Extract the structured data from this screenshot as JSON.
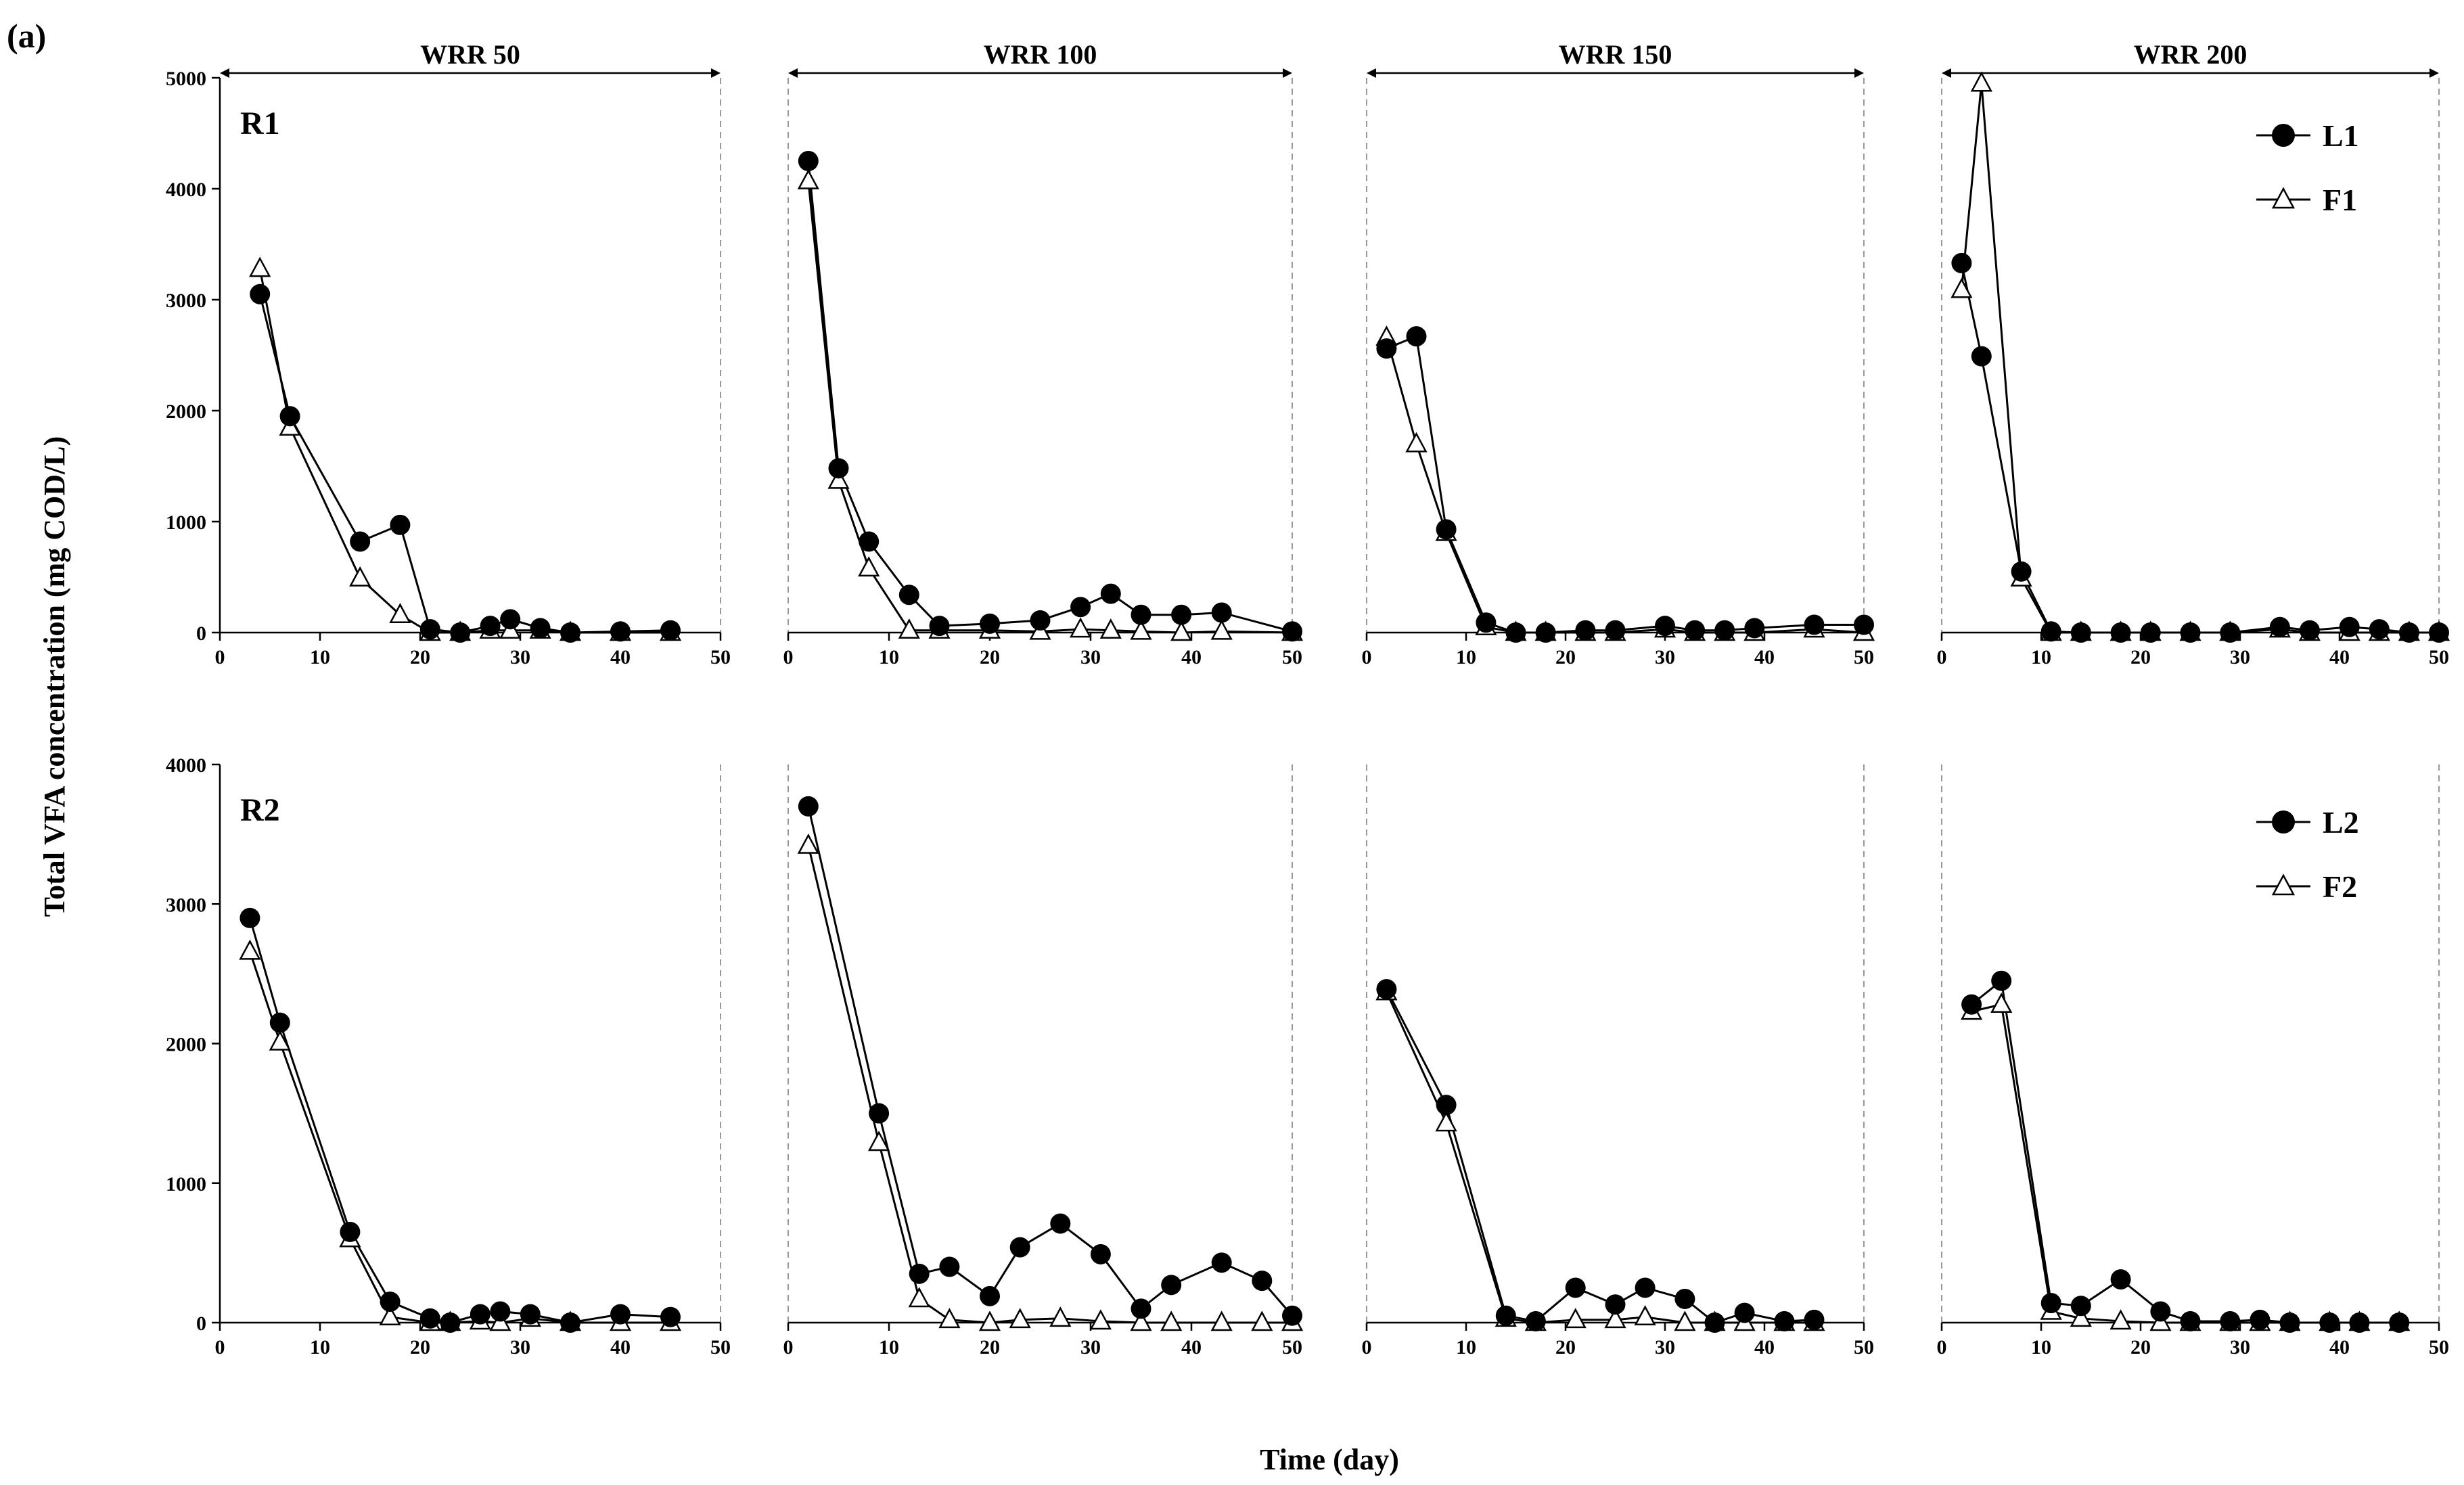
{
  "chart_data": {
    "type": "line",
    "panel_label": "(a)",
    "ylabel": "Total VFA concentration (mg COD/L)",
    "xlabel": "Time (day)",
    "xlim": [
      0,
      50
    ],
    "x_ticks": [
      "0",
      "10",
      "20",
      "30",
      "40",
      "50"
    ],
    "periods": [
      "WRR 50",
      "WRR 100",
      "WRR 150",
      "WRR 200"
    ],
    "rows": [
      {
        "label": "R1",
        "ylim": [
          0,
          5000
        ],
        "y_ticks": [
          "0",
          "1000",
          "2000",
          "3000",
          "4000",
          "5000"
        ],
        "legend": {
          "filled": "L1",
          "open": "F1"
        },
        "panels": [
          {
            "L": [
              [
                4,
                3050
              ],
              [
                7,
                1950
              ],
              [
                14,
                820
              ],
              [
                18,
                970
              ],
              [
                21,
                30
              ],
              [
                24,
                0
              ],
              [
                27,
                60
              ],
              [
                29,
                120
              ],
              [
                32,
                40
              ],
              [
                35,
                0
              ],
              [
                40,
                10
              ],
              [
                45,
                20
              ]
            ],
            "F": [
              [
                4,
                3280
              ],
              [
                7,
                1850
              ],
              [
                14,
                490
              ],
              [
                18,
                160
              ],
              [
                21,
                0
              ],
              [
                24,
                0
              ],
              [
                27,
                20
              ],
              [
                29,
                20
              ],
              [
                32,
                20
              ],
              [
                35,
                0
              ],
              [
                40,
                0
              ],
              [
                45,
                0
              ]
            ]
          },
          {
            "L": [
              [
                2,
                4250
              ],
              [
                5,
                1480
              ],
              [
                8,
                820
              ],
              [
                12,
                340
              ],
              [
                15,
                60
              ],
              [
                20,
                80
              ],
              [
                25,
                110
              ],
              [
                29,
                230
              ],
              [
                32,
                350
              ],
              [
                35,
                160
              ],
              [
                39,
                160
              ],
              [
                43,
                180
              ],
              [
                50,
                10
              ]
            ],
            "F": [
              [
                2,
                4070
              ],
              [
                5,
                1370
              ],
              [
                8,
                580
              ],
              [
                12,
                20
              ],
              [
                15,
                20
              ],
              [
                20,
                20
              ],
              [
                25,
                10
              ],
              [
                29,
                30
              ],
              [
                32,
                20
              ],
              [
                35,
                10
              ],
              [
                39,
                0
              ],
              [
                43,
                10
              ],
              [
                50,
                0
              ]
            ]
          },
          {
            "L": [
              [
                2,
                2560
              ],
              [
                5,
                2670
              ],
              [
                8,
                930
              ],
              [
                12,
                90
              ],
              [
                15,
                0
              ],
              [
                18,
                0
              ],
              [
                22,
                20
              ],
              [
                25,
                20
              ],
              [
                30,
                60
              ],
              [
                33,
                20
              ],
              [
                36,
                20
              ],
              [
                39,
                40
              ],
              [
                45,
                70
              ],
              [
                50,
                70
              ]
            ],
            "F": [
              [
                2,
                2660
              ],
              [
                5,
                1700
              ],
              [
                8,
                900
              ],
              [
                12,
                50
              ],
              [
                15,
                0
              ],
              [
                18,
                0
              ],
              [
                22,
                0
              ],
              [
                25,
                0
              ],
              [
                30,
                30
              ],
              [
                33,
                0
              ],
              [
                36,
                0
              ],
              [
                39,
                0
              ],
              [
                45,
                30
              ],
              [
                50,
                0
              ]
            ]
          },
          {
            "L": [
              [
                2,
                3330
              ],
              [
                4,
                2490
              ],
              [
                8,
                550
              ],
              [
                11,
                10
              ],
              [
                14,
                0
              ],
              [
                18,
                0
              ],
              [
                21,
                0
              ],
              [
                25,
                0
              ],
              [
                29,
                0
              ],
              [
                34,
                50
              ],
              [
                37,
                20
              ],
              [
                41,
                50
              ],
              [
                44,
                30
              ],
              [
                47,
                0
              ],
              [
                50,
                0
              ]
            ],
            "F": [
              [
                2,
                3090
              ],
              [
                4,
                4950
              ],
              [
                8,
                490
              ],
              [
                11,
                0
              ],
              [
                14,
                0
              ],
              [
                18,
                0
              ],
              [
                21,
                0
              ],
              [
                25,
                0
              ],
              [
                29,
                0
              ],
              [
                34,
                30
              ],
              [
                37,
                0
              ],
              [
                41,
                0
              ],
              [
                44,
                0
              ],
              [
                47,
                0
              ],
              [
                50,
                0
              ]
            ]
          }
        ]
      },
      {
        "label": "R2",
        "ylim": [
          0,
          4000
        ],
        "y_ticks": [
          "0",
          "1000",
          "2000",
          "3000",
          "4000"
        ],
        "legend": {
          "filled": "L2",
          "open": "F2"
        },
        "panels": [
          {
            "L": [
              [
                3,
                2900
              ],
              [
                6,
                2150
              ],
              [
                13,
                650
              ],
              [
                17,
                150
              ],
              [
                21,
                30
              ],
              [
                23,
                0
              ],
              [
                26,
                60
              ],
              [
                28,
                80
              ],
              [
                31,
                60
              ],
              [
                35,
                0
              ],
              [
                40,
                60
              ],
              [
                45,
                40
              ]
            ],
            "F": [
              [
                3,
                2660
              ],
              [
                6,
                2010
              ],
              [
                13,
                600
              ],
              [
                17,
                40
              ],
              [
                21,
                0
              ],
              [
                23,
                0
              ],
              [
                26,
                10
              ],
              [
                28,
                0
              ],
              [
                31,
                30
              ],
              [
                35,
                0
              ],
              [
                40,
                0
              ],
              [
                45,
                0
              ]
            ]
          },
          {
            "L": [
              [
                2,
                3700
              ],
              [
                9,
                1500
              ],
              [
                13,
                350
              ],
              [
                16,
                400
              ],
              [
                20,
                190
              ],
              [
                23,
                540
              ],
              [
                27,
                710
              ],
              [
                31,
                490
              ],
              [
                35,
                100
              ],
              [
                38,
                270
              ],
              [
                43,
                430
              ],
              [
                47,
                300
              ],
              [
                50,
                50
              ]
            ],
            "F": [
              [
                2,
                3420
              ],
              [
                9,
                1290
              ],
              [
                13,
                170
              ],
              [
                16,
                20
              ],
              [
                20,
                0
              ],
              [
                23,
                20
              ],
              [
                27,
                30
              ],
              [
                31,
                10
              ],
              [
                35,
                0
              ],
              [
                38,
                0
              ],
              [
                43,
                0
              ],
              [
                47,
                0
              ],
              [
                50,
                0
              ]
            ]
          },
          {
            "L": [
              [
                2,
                2390
              ],
              [
                8,
                1560
              ],
              [
                14,
                50
              ],
              [
                17,
                10
              ],
              [
                21,
                250
              ],
              [
                25,
                130
              ],
              [
                28,
                250
              ],
              [
                32,
                170
              ],
              [
                35,
                0
              ],
              [
                38,
                70
              ],
              [
                42,
                10
              ],
              [
                45,
                20
              ]
            ],
            "F": [
              [
                2,
                2370
              ],
              [
                8,
                1430
              ],
              [
                14,
                30
              ],
              [
                17,
                0
              ],
              [
                21,
                20
              ],
              [
                25,
                20
              ],
              [
                28,
                40
              ],
              [
                32,
                0
              ],
              [
                35,
                0
              ],
              [
                38,
                0
              ],
              [
                42,
                0
              ],
              [
                45,
                0
              ]
            ]
          },
          {
            "L": [
              [
                3,
                2280
              ],
              [
                6,
                2450
              ],
              [
                11,
                140
              ],
              [
                14,
                120
              ],
              [
                18,
                310
              ],
              [
                22,
                80
              ],
              [
                25,
                10
              ],
              [
                29,
                10
              ],
              [
                32,
                20
              ],
              [
                35,
                0
              ],
              [
                39,
                0
              ],
              [
                42,
                0
              ],
              [
                46,
                0
              ]
            ],
            "F": [
              [
                3,
                2230
              ],
              [
                6,
                2280
              ],
              [
                11,
                80
              ],
              [
                14,
                30
              ],
              [
                18,
                10
              ],
              [
                22,
                0
              ],
              [
                25,
                0
              ],
              [
                29,
                0
              ],
              [
                32,
                0
              ],
              [
                35,
                0
              ],
              [
                39,
                0
              ],
              [
                42,
                0
              ],
              [
                46,
                0
              ]
            ]
          }
        ]
      }
    ]
  }
}
